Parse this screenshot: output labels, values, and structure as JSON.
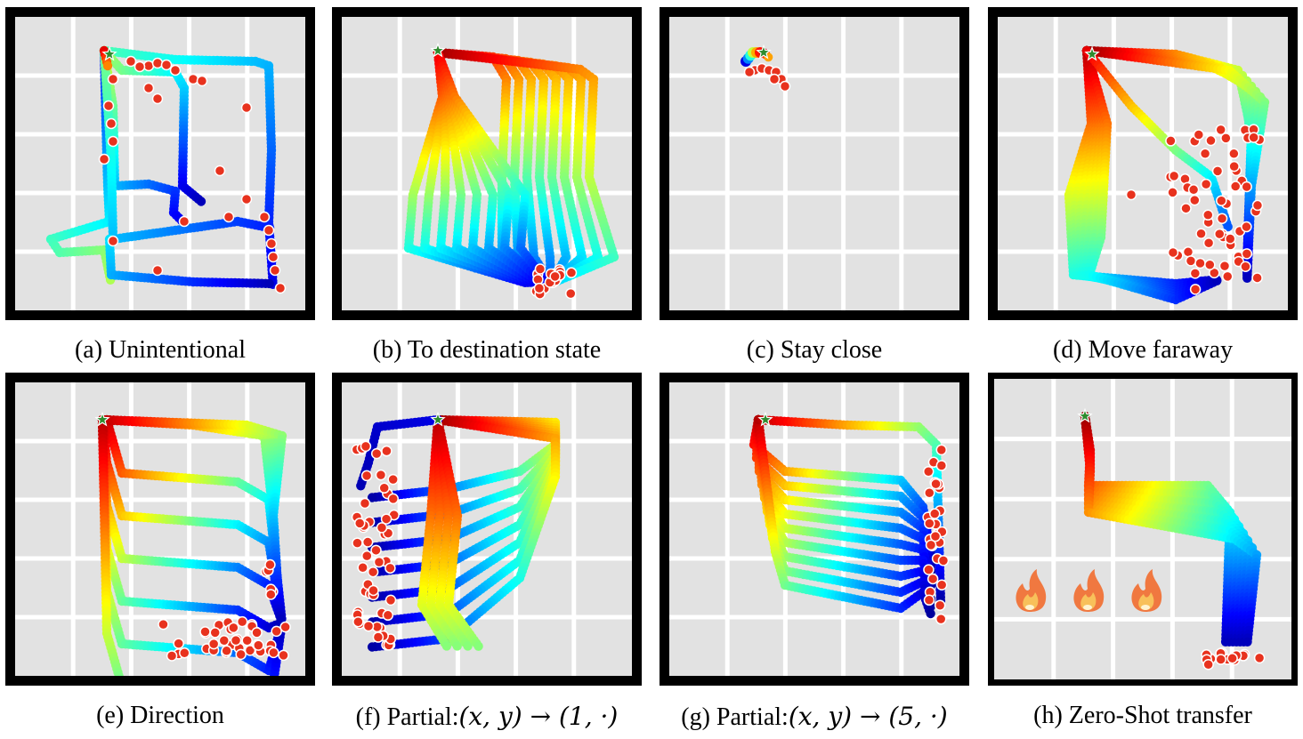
{
  "panels": [
    {
      "id": "a",
      "caption": "(a) Unintentional",
      "pattern": "unintentional"
    },
    {
      "id": "b",
      "caption": "(b) To destination state",
      "pattern": "destination"
    },
    {
      "id": "c",
      "caption": "(c) Stay close",
      "pattern": "close"
    },
    {
      "id": "d",
      "caption": "(d) Move faraway",
      "pattern": "faraway"
    },
    {
      "id": "e",
      "caption": "(e) Direction",
      "pattern": "direction"
    },
    {
      "id": "f",
      "caption_prefix": "(f) Partial:",
      "caption_math": "(x, y) → (1, ·)",
      "pattern": "partial1"
    },
    {
      "id": "g",
      "caption_prefix": "(g) Partial:",
      "caption_math": "(x, y) → (5, ·)",
      "pattern": "partial5"
    },
    {
      "id": "h",
      "caption": "(h) Zero-Shot transfer",
      "pattern": "zeroshot",
      "hazard_icon": "fire-icon",
      "hazard_count": 3
    }
  ],
  "colors": {
    "grid_bg": "#e2e2e2",
    "grid_line": "#ffffff",
    "frame": "#000000",
    "endpoint": "#e8321e",
    "start_star": "#2e8b2e"
  }
}
